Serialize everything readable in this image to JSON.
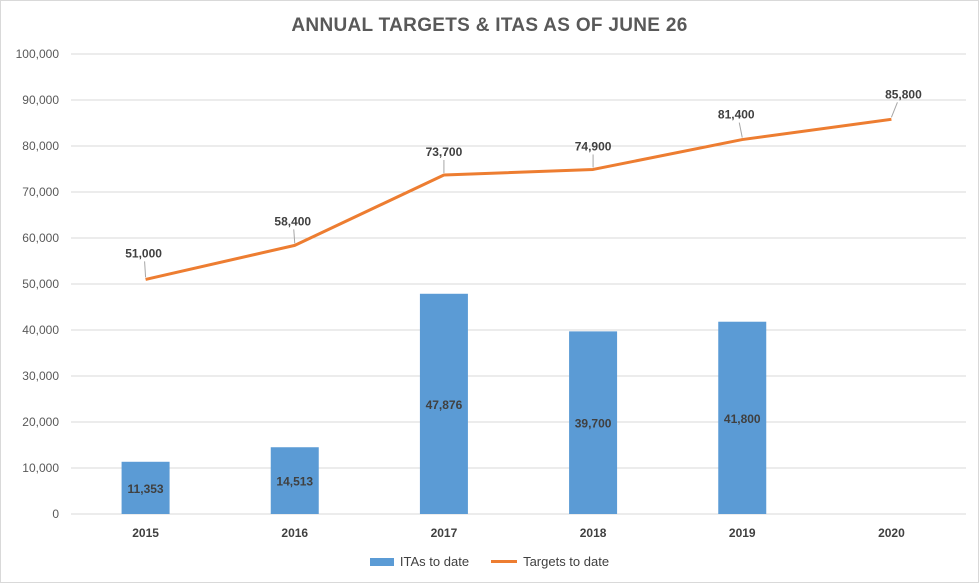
{
  "chart_data": {
    "type": "bar",
    "title": "ANNUAL TARGETS & ITAS AS OF JUNE 26",
    "categories": [
      "2015",
      "2016",
      "2017",
      "2018",
      "2019",
      "2020"
    ],
    "ylim": [
      0,
      100000
    ],
    "yticks": [
      "0",
      "10,000",
      "20,000",
      "30,000",
      "40,000",
      "50,000",
      "60,000",
      "70,000",
      "80,000",
      "90,000",
      "100,000"
    ],
    "grid": true,
    "legend_position": "bottom",
    "series": [
      {
        "name": "ITAs to date",
        "type": "bar",
        "color": "#5b9bd5",
        "values": [
          11353,
          14513,
          47876,
          39700,
          41800,
          null
        ],
        "labels": [
          "11,353",
          "14,513",
          "47,876",
          "39,700",
          "41,800",
          ""
        ]
      },
      {
        "name": "Targets to date",
        "type": "line",
        "color": "#ed7d31",
        "values": [
          51000,
          58400,
          73700,
          74900,
          81400,
          85800
        ],
        "labels": [
          "51,000",
          "58,400",
          "73,700",
          "74,900",
          "81,400",
          "85,800"
        ]
      }
    ]
  }
}
